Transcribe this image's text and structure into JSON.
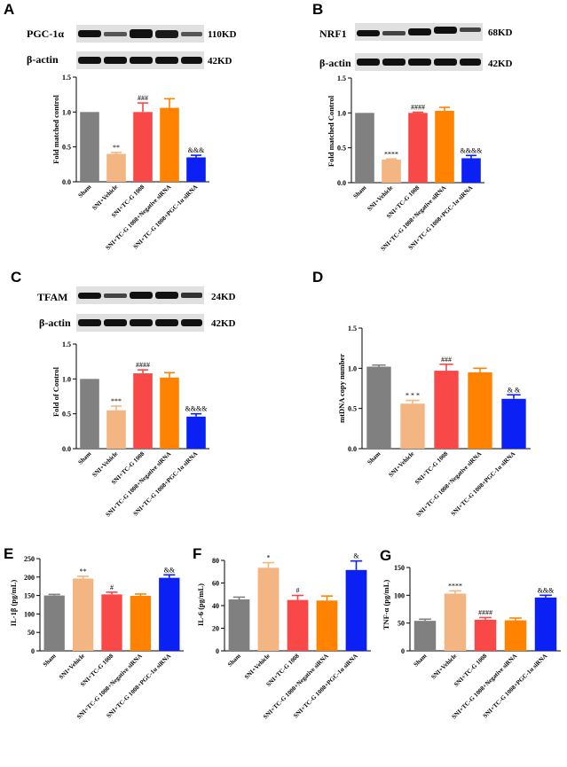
{
  "colors": {
    "sham": "#808080",
    "vehicle": "#f3b581",
    "tcg": "#f94848",
    "negative": "#ff8300",
    "pgc": "#0b20f4"
  },
  "categories": [
    "Sham",
    "SNI+Vehicle",
    "SNI+TC-G 1008",
    "SNI+TC-G 1008+Negative siRNA",
    "SNI+TC-G 1008+PGC-1α siRNA"
  ],
  "chart_data": [
    {
      "id": "A",
      "type": "bar",
      "blot_labels": [
        "PGC-1α",
        "β-actin"
      ],
      "blot_sizes": [
        "110KD",
        "42KD"
      ],
      "ylabel": "Fold matched control",
      "ylim": [
        0,
        1.5
      ],
      "yticks": [
        "0.0",
        "0.5",
        "1.0",
        "1.5"
      ],
      "values": [
        1.0,
        0.4,
        1.0,
        1.06,
        0.35
      ],
      "errors": [
        0,
        0.02,
        0.13,
        0.13,
        0.03
      ],
      "annotations": [
        "",
        "**",
        "###",
        "",
        "&&&"
      ]
    },
    {
      "id": "B",
      "type": "bar",
      "blot_labels": [
        "NRF1",
        "β-actin"
      ],
      "blot_sizes": [
        "68KD",
        "42KD"
      ],
      "ylabel": "Fold matched Control",
      "ylim": [
        0,
        1.5
      ],
      "yticks": [
        "0.0",
        "0.5",
        "1.0",
        "1.5"
      ],
      "values": [
        1.0,
        0.33,
        1.0,
        1.03,
        0.35
      ],
      "errors": [
        0,
        0.01,
        0.01,
        0.05,
        0.04
      ],
      "annotations": [
        "",
        "****",
        "####",
        "",
        "&&&&"
      ]
    },
    {
      "id": "C",
      "type": "bar",
      "blot_labels": [
        "TFAM",
        "β-actin"
      ],
      "blot_sizes": [
        "24KD",
        "42KD"
      ],
      "ylabel": "Fold of Control",
      "ylim": [
        0,
        1.5
      ],
      "yticks": [
        "0.0",
        "0.5",
        "1.0",
        "1.5"
      ],
      "values": [
        1.0,
        0.55,
        1.08,
        1.02,
        0.46
      ],
      "errors": [
        0,
        0.06,
        0.05,
        0.07,
        0.04
      ],
      "annotations": [
        "",
        "***",
        "####",
        "",
        "&&&&"
      ]
    },
    {
      "id": "D",
      "type": "bar",
      "ylabel": "mtDNA copy number",
      "ylim": [
        0,
        1.5
      ],
      "yticks": [
        "0.0",
        "0.5",
        "1.0",
        "1.5"
      ],
      "values": [
        1.02,
        0.56,
        0.97,
        0.95,
        0.62
      ],
      "errors": [
        0.02,
        0.04,
        0.08,
        0.05,
        0.05
      ],
      "annotations": [
        "",
        "* * *",
        "###",
        "",
        "& &"
      ]
    },
    {
      "id": "E",
      "type": "bar",
      "ylabel": "IL-1β (pg/mL)",
      "ylim": [
        0,
        250
      ],
      "yticks": [
        "0",
        "50",
        "100",
        "150",
        "200",
        "250"
      ],
      "values": [
        150,
        196,
        153,
        149,
        198
      ],
      "errors": [
        3,
        6,
        6,
        5,
        8
      ],
      "annotations": [
        "",
        "**",
        "#",
        "",
        "&&"
      ]
    },
    {
      "id": "F",
      "type": "bar",
      "ylabel": "IL-6 (pg/mL)",
      "ylim": [
        0,
        80
      ],
      "yticks": [
        "0",
        "20",
        "40",
        "60",
        "80"
      ],
      "values": [
        45.5,
        73.5,
        45,
        44.5,
        71.5
      ],
      "errors": [
        2,
        4.5,
        4,
        4,
        8
      ],
      "annotations": [
        "",
        "*",
        "#",
        "",
        "&"
      ]
    },
    {
      "id": "G",
      "type": "bar",
      "ylabel": "TNF-α (pg/mL)",
      "ylim": [
        0,
        150
      ],
      "yticks": [
        "0",
        "50",
        "100",
        "150"
      ],
      "values": [
        54,
        103,
        56,
        55,
        96
      ],
      "errors": [
        3,
        5,
        4,
        4,
        4
      ],
      "annotations": [
        "",
        "****",
        "####",
        "",
        "&&&"
      ]
    }
  ]
}
